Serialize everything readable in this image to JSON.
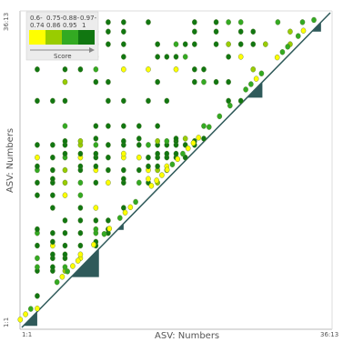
{
  "chart_data": {
    "type": "scatter",
    "title": "",
    "xlabel": "ASV: Numbers",
    "ylabel": "ASV: Numbers",
    "x_ticks": {
      "start": "1:1",
      "end": "36:13"
    },
    "y_ticks": {
      "start": "1:1",
      "end": "36:13"
    },
    "xlim": [
      0,
      100
    ],
    "ylim": [
      0,
      100
    ],
    "grid": false,
    "legend": {
      "title": "Score",
      "placement": "top-left",
      "bins": [
        {
          "label_top": "0.6-",
          "label_bottom": "0.74",
          "color": "#ffff00"
        },
        {
          "label_top": "0.75-",
          "label_bottom": "0.86",
          "color": "#99cc00"
        },
        {
          "label_top": "0.88-",
          "label_bottom": "0.95",
          "color": "#33aa22"
        },
        {
          "label_top": "0.97-",
          "label_bottom": "1",
          "color": "#117711"
        }
      ]
    },
    "diagonal_color": "#2f5a5a",
    "diagonal_blocks": [
      {
        "start": 0.5,
        "end": 5
      },
      {
        "start": 16,
        "end": 25
      },
      {
        "start": 31,
        "end": 33
      },
      {
        "start": 73,
        "end": 78
      },
      {
        "start": 94,
        "end": 97
      }
    ],
    "columns_x": [
      5,
      10,
      14,
      19,
      24,
      28,
      33,
      38,
      41,
      44,
      47,
      50,
      53,
      56,
      59,
      63,
      67,
      71,
      75,
      79,
      83,
      87,
      91,
      95
    ],
    "block_rows_y": [
      2,
      6,
      10,
      14,
      18,
      22,
      26,
      30,
      34,
      38,
      42,
      46,
      50,
      54,
      58,
      60,
      64,
      72,
      78,
      82,
      86,
      90,
      94,
      97
    ]
  }
}
